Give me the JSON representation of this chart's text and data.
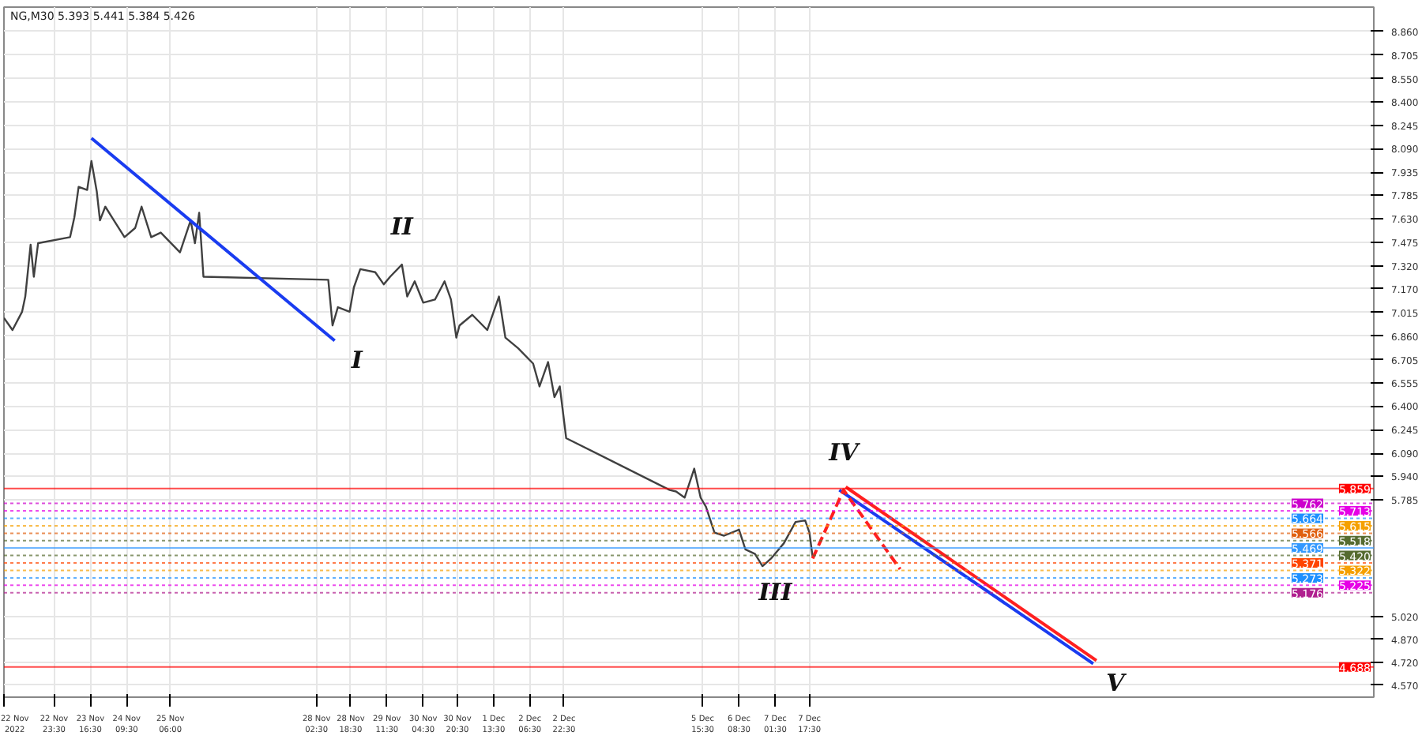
{
  "chart_data": {
    "type": "line",
    "title": "NG,M30  5.393 5.441 5.384 5.426",
    "xlim": [
      "2022-11-22T00:00",
      "2022-12-18T18:00"
    ],
    "ylim": [
      4.49,
      9.02
    ],
    "xticks": [
      {
        "value": "2022-11-22T00:00",
        "label": "22 Nov 2022"
      },
      {
        "value": "2022-11-22T23:30",
        "label": "22 Nov 23:30"
      },
      {
        "value": "2022-11-23T16:30",
        "label": "23 Nov 16:30"
      },
      {
        "value": "2022-11-24T09:30",
        "label": "24 Nov 09:30"
      },
      {
        "value": "2022-11-25T06:00",
        "label": "25 Nov 06:00"
      },
      {
        "value": "2022-11-28T02:30",
        "label": "28 Nov 02:30"
      },
      {
        "value": "2022-11-28T18:30",
        "label": "28 Nov 18:30"
      },
      {
        "value": "2022-11-29T11:30",
        "label": "29 Nov 11:30"
      },
      {
        "value": "2022-11-30T04:30",
        "label": "30 Nov 04:30"
      },
      {
        "value": "2022-11-30T20:30",
        "label": "30 Nov 20:30"
      },
      {
        "value": "2022-12-01T13:30",
        "label": "1 Dec 13:30"
      },
      {
        "value": "2022-12-02T06:30",
        "label": "2 Dec 06:30"
      },
      {
        "value": "2022-12-02T22:30",
        "label": "2 Dec 22:30"
      },
      {
        "value": "2022-12-05T15:30",
        "label": "5 Dec 15:30"
      },
      {
        "value": "2022-12-06T08:30",
        "label": "6 Dec 08:30"
      },
      {
        "value": "2022-12-07T01:30",
        "label": "7 Dec 01:30"
      },
      {
        "value": "2022-12-07T17:30",
        "label": "7 Dec 17:30"
      }
    ],
    "yticks": [
      {
        "value": 8.86,
        "label": "8.860"
      },
      8.705,
      {
        "value": 8.55,
        "label": "8.550"
      },
      {
        "value": 8.4,
        "label": "8.400"
      },
      8.245,
      {
        "value": 8.09,
        "label": "8.090"
      },
      7.935,
      7.785,
      {
        "value": 7.63,
        "label": "7.630"
      },
      7.475,
      {
        "value": 7.32,
        "label": "7.320"
      },
      {
        "value": 7.17,
        "label": "7.170"
      },
      7.015,
      {
        "value": 6.86,
        "label": "6.860"
      },
      6.705,
      6.555,
      {
        "value": 6.4,
        "label": "6.400"
      },
      6.245,
      {
        "value": 6.09,
        "label": "6.090"
      },
      {
        "value": 5.94,
        "label": "5.940"
      },
      5.785,
      {
        "value": 5.02,
        "label": "5.020"
      },
      {
        "value": 4.87,
        "label": "4.870"
      },
      {
        "value": 4.72,
        "label": "4.720"
      },
      {
        "value": 4.57,
        "label": "4.570"
      }
    ],
    "grid": true,
    "marker": "none",
    "series": [
      {
        "color": "#404040",
        "line_style": "solid",
        "x": [
          "2022-11-22T00:00",
          "2022-11-22T04:00",
          "2022-11-22T08:30",
          "2022-11-22T10:00",
          "2022-11-22T12:30",
          "2022-11-22T14:00",
          "2022-11-22T16:00",
          "2022-11-23T07:00",
          "2022-11-23T09:00",
          "2022-11-23T11:00",
          "2022-11-23T15:00",
          "2022-11-23T17:00",
          "2022-11-23T19:30",
          "2022-11-23T21:00",
          "2022-11-23T23:30",
          "2022-11-24T04:00",
          "2022-11-24T08:30",
          "2022-11-24T13:30",
          "2022-11-24T16:30",
          "2022-11-24T21:00",
          "2022-11-25T01:30",
          "2022-11-25T10:30",
          "2022-11-25T15:30",
          "2022-11-25T17:30",
          "2022-11-25T19:30",
          "2022-11-25T21:30",
          "2022-11-28T08:00",
          "2022-11-28T10:00",
          "2022-11-28T12:30",
          "2022-11-28T18:00",
          "2022-11-28T20:00",
          "2022-11-28T23:00",
          "2022-11-29T06:00",
          "2022-11-29T10:00",
          "2022-11-29T13:00",
          "2022-11-29T18:30",
          "2022-11-29T21:00",
          "2022-11-30T00:30",
          "2022-11-30T04:30",
          "2022-11-30T10:00",
          "2022-11-30T14:30",
          "2022-11-30T17:30",
          "2022-11-30T20:00",
          "2022-11-30T21:30",
          "2022-12-01T03:30",
          "2022-12-01T10:30",
          "2022-12-01T16:00",
          "2022-12-01T19:00",
          "2022-12-02T01:00",
          "2022-12-02T08:00",
          "2022-12-02T11:00",
          "2022-12-02T15:00",
          "2022-12-02T18:00",
          "2022-12-02T20:30",
          "2022-12-02T23:30",
          "2022-12-05T00:00",
          "2022-12-05T03:00",
          "2022-12-05T07:00",
          "2022-12-05T11:30",
          "2022-12-05T14:30",
          "2022-12-05T17:00",
          "2022-12-05T21:00",
          "2022-12-06T01:30",
          "2022-12-06T08:30",
          "2022-12-06T11:30",
          "2022-12-06T16:00",
          "2022-12-06T19:30",
          "2022-12-06T23:30",
          "2022-12-07T05:30",
          "2022-12-07T11:00",
          "2022-12-07T15:30",
          "2022-12-07T17:30",
          "2022-12-07T19:00"
        ],
        "values": [
          6.98,
          6.9,
          7.02,
          7.12,
          7.46,
          7.25,
          7.47,
          7.51,
          7.64,
          7.84,
          7.82,
          8.01,
          7.81,
          7.62,
          7.71,
          7.61,
          7.51,
          7.57,
          7.71,
          7.51,
          7.54,
          7.41,
          7.62,
          7.47,
          7.67,
          7.25,
          7.23,
          6.93,
          7.05,
          7.02,
          7.18,
          7.3,
          7.28,
          7.2,
          7.25,
          7.33,
          7.12,
          7.22,
          7.08,
          7.1,
          7.22,
          7.1,
          6.85,
          6.93,
          7.0,
          6.9,
          7.12,
          6.85,
          6.78,
          6.68,
          6.53,
          6.69,
          6.46,
          6.53,
          6.19,
          5.85,
          5.84,
          5.8,
          5.99,
          5.8,
          5.74,
          5.57,
          5.55,
          5.59,
          5.46,
          5.43,
          5.35,
          5.4,
          5.5,
          5.64,
          5.65,
          5.57,
          5.41
        ]
      },
      {
        "color": "#1a3cf0",
        "line_style": "solid",
        "x": [
          "2022-11-23T17:00",
          "2022-11-28T11:00"
        ],
        "values": [
          8.16,
          6.83
        ]
      },
      {
        "color": "#1a3cf0",
        "line_style": "solid",
        "x": [
          "2022-12-08T07:30",
          "2022-12-13T06:30"
        ],
        "values": [
          5.85,
          4.71
        ]
      },
      {
        "color": "#ff2020",
        "line_style": "solid",
        "x": [
          "2022-12-08T10:30",
          "2022-12-13T08:00"
        ],
        "values": [
          5.87,
          4.73
        ]
      },
      {
        "color": "#ff2020",
        "line_style": "dashed",
        "x": [
          "2022-12-07T19:00",
          "2022-12-08T09:30",
          "2022-12-09T12:00"
        ],
        "values": [
          5.4,
          5.85,
          5.33
        ]
      }
    ],
    "ref_lines": [
      {
        "axis": "y",
        "value": 5.859,
        "label": "5.859",
        "color": "#ff0000",
        "line_style": "solid"
      },
      {
        "axis": "y",
        "value": 5.762,
        "label": "5.762",
        "color": "#cc00cc",
        "line_style": "dotted"
      },
      {
        "axis": "y",
        "value": 5.713,
        "label": "5.713",
        "color": "#e600e6",
        "line_style": "dotted"
      },
      {
        "axis": "y",
        "value": 5.664,
        "label": "5.664",
        "color": "#1e90ff",
        "line_style": "dotted"
      },
      {
        "axis": "y",
        "value": 5.615,
        "label": "5.615",
        "color": "#f5a000",
        "line_style": "dotted"
      },
      {
        "axis": "y",
        "value": 5.566,
        "label": "5.566",
        "color": "#e06010",
        "line_style": "dotted"
      },
      {
        "axis": "y",
        "value": 5.518,
        "label": "5.518",
        "color": "#556b2f",
        "line_style": "dotted"
      },
      {
        "axis": "y",
        "value": 5.469,
        "label": "5.469",
        "color": "#3399ff",
        "line_style": "solid"
      },
      {
        "axis": "y",
        "value": 5.42,
        "label": "5.420",
        "color": "#556b2f",
        "line_style": "dotted"
      },
      {
        "axis": "y",
        "value": 5.371,
        "label": "5.371",
        "color": "#ff4500",
        "line_style": "dotted"
      },
      {
        "axis": "y",
        "value": 5.322,
        "label": "5.322",
        "color": "#f5a000",
        "line_style": "dotted"
      },
      {
        "axis": "y",
        "value": 5.273,
        "label": "5.273",
        "color": "#1e90ff",
        "line_style": "dotted"
      },
      {
        "axis": "y",
        "value": 5.225,
        "label": "5.225",
        "color": "#e600e6",
        "line_style": "dotted"
      },
      {
        "axis": "y",
        "value": 5.176,
        "label": "5.176",
        "color": "#b0208f",
        "line_style": "dotted"
      },
      {
        "axis": "y",
        "value": 4.688,
        "label": "4.688",
        "color": "#ff0000",
        "line_style": "solid"
      }
    ],
    "annotations": [
      {
        "text": "I",
        "x": "2022-11-28T11:00",
        "y": 6.83
      },
      {
        "text": "II",
        "x": "2022-11-29T18:30",
        "y": 7.33
      },
      {
        "text": "III",
        "x": "2022-12-07T01:30",
        "y": 5.18
      },
      {
        "text": "IV",
        "x": "2022-12-08T09:30",
        "y": 5.85
      },
      {
        "text": "V",
        "x": "2022-12-13T06:30",
        "y": 4.71
      }
    ]
  }
}
